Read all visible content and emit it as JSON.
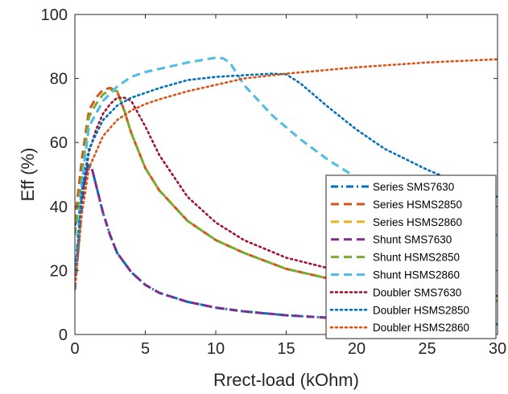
{
  "chart_data": {
    "type": "line",
    "title": "",
    "xlabel": "Rrect-load (kOhm)",
    "ylabel": "Eff (%)",
    "xlim": [
      0,
      30
    ],
    "ylim": [
      0,
      100
    ],
    "x_ticks": [
      "0",
      "5",
      "10",
      "15",
      "20",
      "25",
      "30"
    ],
    "y_ticks": [
      "0",
      "20",
      "40",
      "60",
      "80",
      "100"
    ],
    "grid": false,
    "legend_position": "bottom-right",
    "series": [
      {
        "name": "Series SMS7630",
        "color": "#0072BD",
        "style": "dashdot",
        "x": [
          0,
          0.3,
          0.6,
          0.9,
          1.2,
          1.6,
          2.0,
          2.5,
          3.0,
          4.0,
          5.0,
          6.0,
          8.0,
          10.0,
          12.0,
          15.0,
          20.0,
          25.0,
          30.0
        ],
        "y": [
          14,
          30,
          45,
          53,
          52,
          45,
          38,
          31,
          25.5,
          19.5,
          15.5,
          13,
          10.2,
          8.4,
          7.2,
          6,
          4.7,
          3.8,
          3.2
        ]
      },
      {
        "name": "Series HSMS2850",
        "color": "#D95319",
        "style": "dashed",
        "x": [
          0,
          0.5,
          1.0,
          1.5,
          2.0,
          2.5,
          3.0,
          3.5,
          4.0,
          5.0,
          6.0,
          8.0,
          10.0,
          12.0,
          15.0,
          20.0,
          25.0,
          30.0
        ],
        "y": [
          35,
          55,
          70,
          74,
          76.5,
          77,
          76,
          70,
          63,
          52,
          45,
          35.5,
          29.5,
          25.5,
          20.5,
          15.5,
          12.5,
          10.5
        ]
      },
      {
        "name": "Series HSMS2860",
        "color": "#EDB120",
        "style": "dashed",
        "x": [
          0,
          0.5,
          1.0,
          2.0,
          3.0,
          4.0,
          5.0,
          6.0,
          8.0,
          10.0,
          10.5,
          11.0,
          12.0,
          14.0,
          16.0,
          18.0,
          20.0,
          22.0,
          25.0,
          30.0
        ],
        "y": [
          18,
          48,
          65,
          73,
          77.5,
          80.5,
          82,
          83,
          85,
          86.5,
          86.3,
          85,
          78,
          68.5,
          61,
          54.5,
          49,
          44,
          38.5,
          31
        ]
      },
      {
        "name": "Shunt SMS7630",
        "color": "#7E2F8E",
        "style": "dashed",
        "x": [
          0,
          0.3,
          0.6,
          0.9,
          1.2,
          1.6,
          2.0,
          2.5,
          3.0,
          4.0,
          5.0,
          6.0,
          8.0,
          10.0,
          12.0,
          15.0,
          20.0,
          25.0,
          30.0
        ],
        "y": [
          34,
          38,
          46,
          52,
          52,
          45,
          38,
          31,
          25.5,
          19.5,
          15.5,
          13,
          10.2,
          8.4,
          7.2,
          6,
          4.7,
          3.8,
          3.2
        ]
      },
      {
        "name": "Shunt HSMS2850",
        "color": "#77AC30",
        "style": "dashed",
        "x": [
          0,
          0.5,
          1.0,
          1.5,
          2.0,
          2.5,
          3.0,
          3.5,
          4.0,
          5.0,
          6.0,
          8.0,
          10.0,
          12.0,
          15.0,
          20.0,
          25.0,
          30.0
        ],
        "y": [
          31,
          50,
          68,
          72,
          75,
          76.5,
          76,
          70,
          63,
          52,
          45,
          35.5,
          29.5,
          25.5,
          20.5,
          15.5,
          12.5,
          10.5
        ]
      },
      {
        "name": "Shunt HSMS2860",
        "color": "#4DBEEE",
        "style": "dashed",
        "x": [
          0,
          0.5,
          1.0,
          2.0,
          3.0,
          4.0,
          5.0,
          6.0,
          8.0,
          10.0,
          10.5,
          11.0,
          12.0,
          14.0,
          16.0,
          18.0,
          20.0,
          22.0,
          25.0,
          30.0
        ],
        "y": [
          18,
          48,
          65,
          73,
          77.5,
          80.5,
          82,
          83,
          85,
          86.5,
          86.3,
          85,
          78,
          68.5,
          61,
          54.5,
          49,
          44,
          38.5,
          31
        ]
      },
      {
        "name": "Doubler SMS7630",
        "color": "#A2142F",
        "style": "dotted",
        "x": [
          0,
          0.5,
          1.0,
          1.5,
          2.0,
          2.5,
          3.0,
          3.5,
          4.0,
          4.5,
          5.0,
          6.0,
          8.0,
          10.0,
          12.0,
          15.0,
          20.0,
          25.0,
          30.0
        ],
        "y": [
          17,
          42,
          57,
          64,
          69,
          72,
          74,
          74,
          73,
          69,
          65,
          56,
          43,
          35,
          29.5,
          24,
          18.5,
          14.5,
          12
        ]
      },
      {
        "name": "Doubler HSMS2850",
        "color": "#0072BD",
        "style": "dotted",
        "x": [
          0,
          0.5,
          1.0,
          2.0,
          3.0,
          4.0,
          5.0,
          6.0,
          8.0,
          10.0,
          12.0,
          14.0,
          15.0,
          16.0,
          18.0,
          20.0,
          22.0,
          25.0,
          28.0,
          30.0
        ],
        "y": [
          17,
          45,
          58,
          67,
          71.5,
          74,
          75.5,
          77,
          79.5,
          80.5,
          81,
          81.5,
          81.3,
          78.5,
          71,
          64,
          58,
          51.5,
          46,
          43
        ]
      },
      {
        "name": "Doubler HSMS2860",
        "color": "#D95319",
        "style": "dotted",
        "x": [
          0,
          0.5,
          1.0,
          2.0,
          3.0,
          4.0,
          5.0,
          6.0,
          8.0,
          10.0,
          12.0,
          15.0,
          20.0,
          25.0,
          30.0
        ],
        "y": [
          14,
          38,
          52,
          62,
          67,
          70,
          72,
          73.5,
          76,
          78,
          80,
          81.5,
          83.5,
          85,
          86
        ]
      }
    ]
  }
}
